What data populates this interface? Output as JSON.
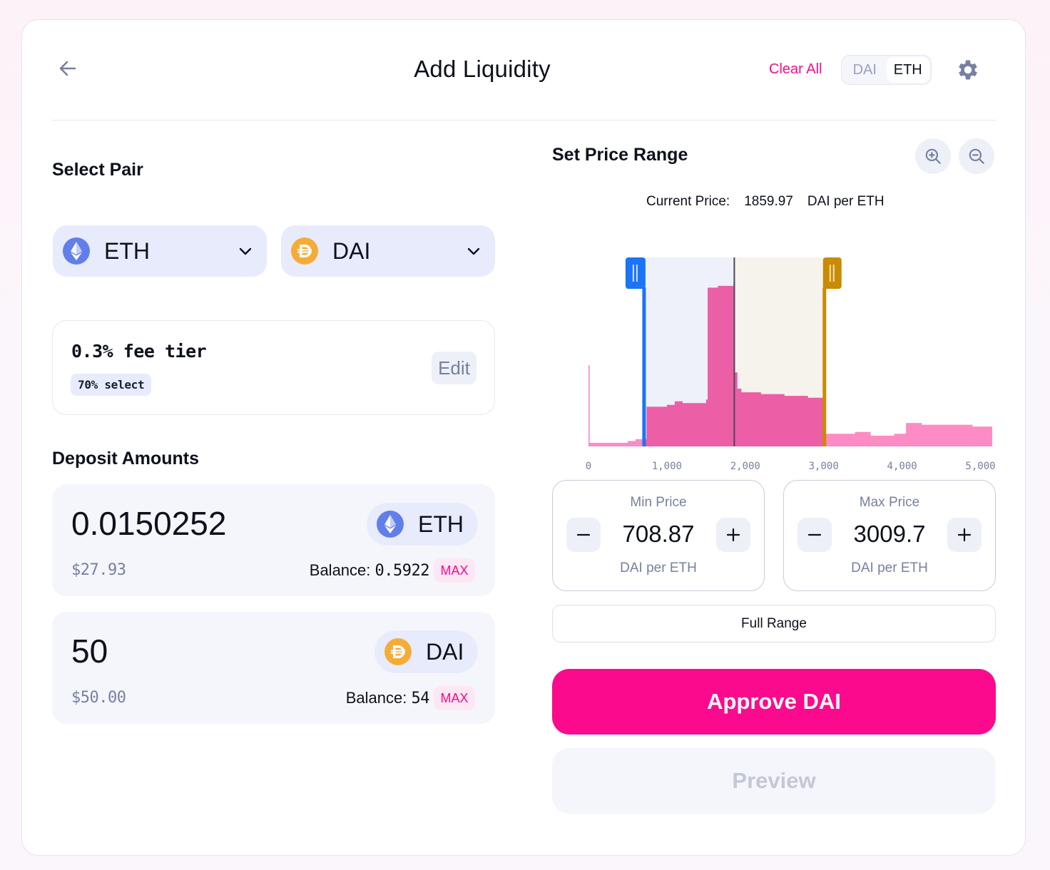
{
  "header": {
    "title": "Add Liquidity",
    "clear_all": "Clear All",
    "denom_toggle": {
      "options": [
        "DAI",
        "ETH"
      ],
      "selected": "ETH"
    },
    "icons": {
      "back": "arrow-left-icon",
      "settings": "gear-icon"
    }
  },
  "select_pair": {
    "title": "Select Pair",
    "token_a": {
      "symbol": "ETH",
      "icon": "eth-icon"
    },
    "token_b": {
      "symbol": "DAI",
      "icon": "dai-icon"
    }
  },
  "fee_tier": {
    "label": "0.3% fee tier",
    "badge": "70% select",
    "edit": "Edit"
  },
  "deposit": {
    "title": "Deposit Amounts",
    "items": [
      {
        "amount": "0.0150252",
        "usd": "$27.93",
        "token": "ETH",
        "balance_label": "Balance:",
        "balance": "0.5922",
        "max": "MAX"
      },
      {
        "amount": "50",
        "usd": "$50.00",
        "token": "DAI",
        "balance_label": "Balance:",
        "balance": "54",
        "max": "MAX"
      }
    ]
  },
  "price_range": {
    "title": "Set Price Range",
    "current_price_label": "Current Price:",
    "current_price": "1859.97",
    "current_price_unit": "DAI per ETH",
    "min": {
      "label": "Min Price",
      "value": "708.87",
      "unit": "DAI per ETH",
      "minus": "−",
      "plus": "+"
    },
    "max": {
      "label": "Max Price",
      "value": "3009.7",
      "unit": "DAI per ETH",
      "minus": "−",
      "plus": "+"
    },
    "full_range": "Full Range"
  },
  "actions": {
    "approve": "Approve DAI",
    "preview": "Preview"
  },
  "colors": {
    "accent": "#fc0a8d",
    "min_handle": "#1b74f5",
    "max_handle": "#c98b06",
    "liquidity_in_range": "#ec5ea5",
    "liquidity_out_range": "#fd8cc4"
  },
  "chart_data": {
    "type": "area",
    "xlabel": "",
    "ylabel": "",
    "x_ticks": [
      "0",
      "1,000",
      "2,000",
      "3,000",
      "4,000",
      "5,000"
    ],
    "xlim": [
      0,
      5150
    ],
    "ylim": [
      0,
      100
    ],
    "current_price": 1859.97,
    "min_price": 708.87,
    "max_price": 3009.7,
    "liquidity": [
      [
        0,
        45
      ],
      [
        10,
        45
      ],
      [
        15,
        2
      ],
      [
        300,
        2
      ],
      [
        480,
        2
      ],
      [
        500,
        3
      ],
      [
        560,
        3
      ],
      [
        600,
        4
      ],
      [
        700,
        4
      ],
      [
        740,
        22
      ],
      [
        1000,
        23
      ],
      [
        1100,
        25
      ],
      [
        1200,
        24
      ],
      [
        1500,
        26
      ],
      [
        1520,
        88
      ],
      [
        1650,
        89
      ],
      [
        1850,
        91
      ],
      [
        1870,
        41
      ],
      [
        1900,
        32
      ],
      [
        1950,
        30
      ],
      [
        2200,
        29
      ],
      [
        2500,
        28
      ],
      [
        2800,
        27
      ],
      [
        3000,
        26
      ],
      [
        3020,
        7
      ],
      [
        3400,
        8
      ],
      [
        3600,
        6
      ],
      [
        3800,
        6
      ],
      [
        3900,
        7
      ],
      [
        4000,
        7
      ],
      [
        4050,
        13
      ],
      [
        4250,
        12
      ],
      [
        4600,
        12
      ],
      [
        4900,
        11
      ],
      [
        5150,
        11
      ]
    ]
  }
}
